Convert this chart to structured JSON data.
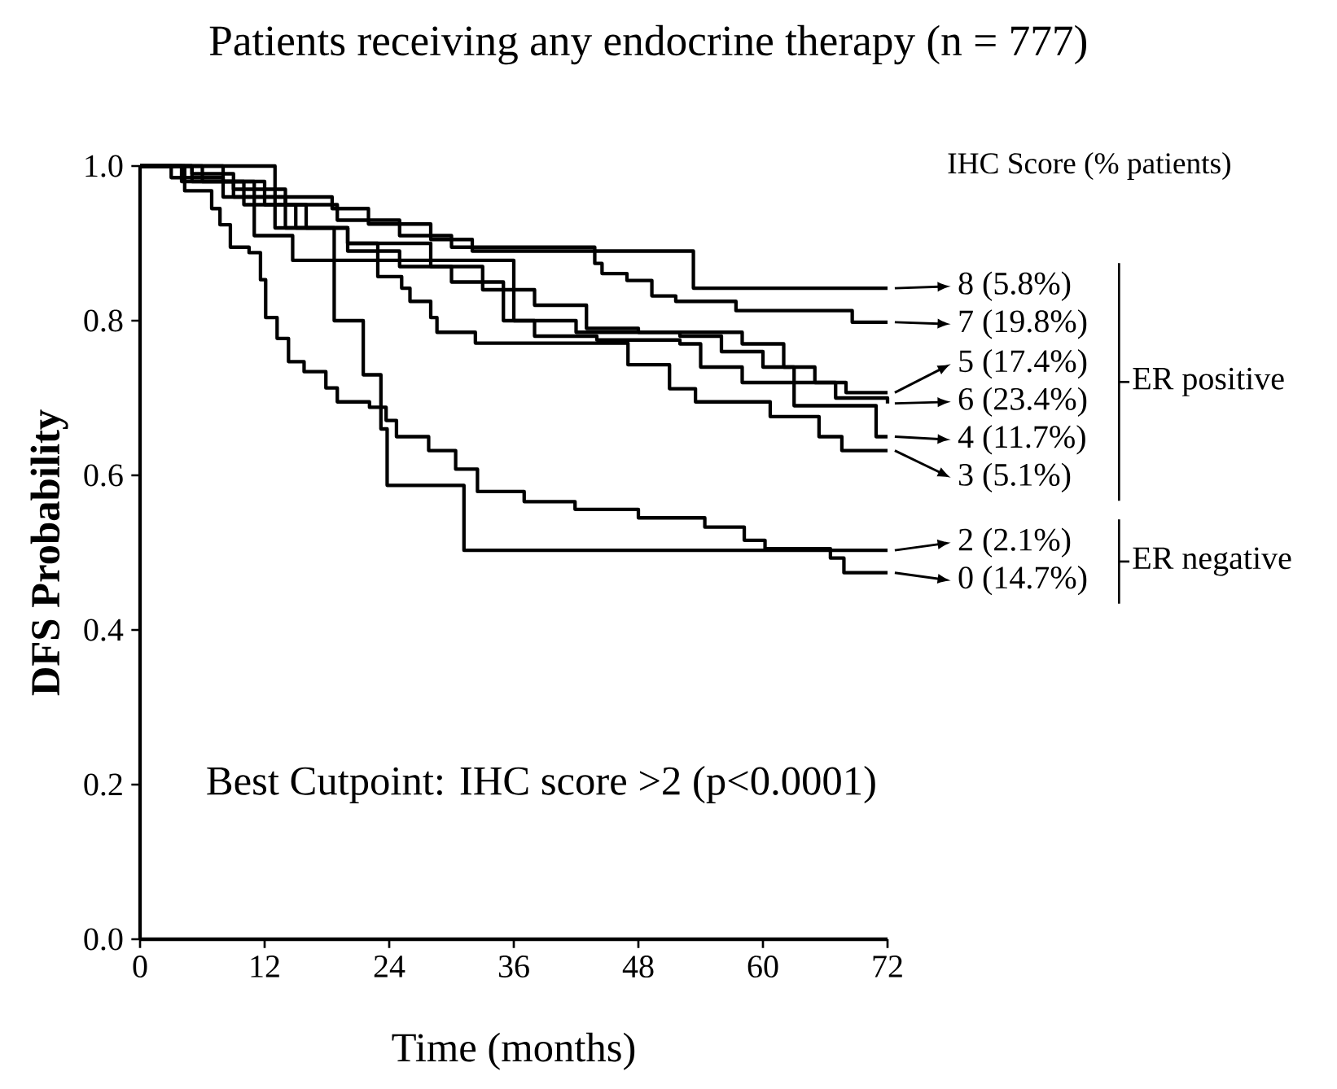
{
  "chart_data": {
    "type": "step",
    "title": "Patients receiving any endocrine therapy (n = 777)",
    "xlabel": "Time (months)",
    "ylabel": "DFS Probability",
    "legend_title": "IHC Score (% patients)",
    "legend": "right",
    "annotations": [
      "Best Cutpoint: IHC score >2 (p<0.0001)",
      "ER positive",
      "ER negative"
    ],
    "xlim": [
      0,
      72
    ],
    "ylim": [
      0,
      1
    ],
    "xticks": [
      0,
      12,
      24,
      36,
      48,
      60,
      72
    ],
    "yticks": [
      {
        "value": 0,
        "label": "0.0"
      },
      {
        "value": 0.2,
        "label": "0.2"
      },
      {
        "value": 0.4,
        "label": "0.4"
      },
      {
        "value": 0.6,
        "label": "0.6"
      },
      {
        "value": 0.8,
        "label": "0.8"
      },
      {
        "value": 1,
        "label": "1.0"
      }
    ],
    "series": [
      {
        "name": "8 (5.8%)",
        "color": "#000000",
        "x": [
          0,
          13,
          18.5,
          22,
          28,
          32,
          53.3,
          72
        ],
        "values": [
          1,
          0.96,
          0.945,
          0.925,
          0.905,
          0.89,
          0.842,
          0.842
        ]
      },
      {
        "name": "7 (19.8%)",
        "color": "#000000",
        "x": [
          0,
          5,
          9,
          14,
          19,
          25,
          30,
          43.8,
          44.5,
          46.9,
          49.3,
          51.6,
          57.4,
          68.6,
          72
        ],
        "values": [
          1,
          0.99,
          0.97,
          0.95,
          0.93,
          0.91,
          0.895,
          0.874,
          0.861,
          0.852,
          0.832,
          0.825,
          0.813,
          0.798,
          0.798
        ]
      },
      {
        "name": "5 (17.4%)",
        "color": "#000000",
        "x": [
          0,
          4,
          10,
          15,
          20,
          28,
          33,
          38,
          43,
          48,
          58,
          62,
          65,
          68,
          72
        ],
        "values": [
          1,
          0.98,
          0.95,
          0.92,
          0.9,
          0.87,
          0.84,
          0.82,
          0.79,
          0.785,
          0.77,
          0.74,
          0.72,
          0.707,
          0.707
        ]
      },
      {
        "name": "6 (23.4%)",
        "color": "#000000",
        "x": [
          0,
          3,
          8,
          14,
          20,
          25,
          30,
          35,
          42,
          52,
          56,
          60,
          63,
          67,
          72
        ],
        "values": [
          1,
          0.985,
          0.96,
          0.92,
          0.89,
          0.87,
          0.85,
          0.8,
          0.785,
          0.78,
          0.76,
          0.74,
          0.72,
          0.7,
          0.693
        ]
      },
      {
        "name": "4 (11.7%)",
        "color": "#000000",
        "x": [
          0,
          5,
          9,
          13,
          18.7,
          36,
          38,
          44,
          52,
          54,
          58,
          63,
          70.9,
          72
        ],
        "values": [
          1,
          0.98,
          0.96,
          0.92,
          0.878,
          0.8,
          0.78,
          0.775,
          0.77,
          0.74,
          0.72,
          0.69,
          0.65,
          0.65
        ]
      },
      {
        "name": "3 (5.1%)",
        "color": "#000000",
        "x": [
          0,
          6,
          12,
          16,
          20,
          22.9,
          25.2,
          26,
          28,
          28.6,
          32.3,
          47,
          51,
          53.5,
          60.7,
          65.4,
          67.6,
          72
        ],
        "values": [
          1,
          0.98,
          0.95,
          0.92,
          0.9,
          0.857,
          0.842,
          0.825,
          0.804,
          0.785,
          0.771,
          0.743,
          0.712,
          0.695,
          0.676,
          0.65,
          0.632,
          0.632
        ]
      },
      {
        "name": "2 (2.1%)",
        "color": "#000000",
        "x": [
          0,
          8,
          11,
          14.7,
          18.7,
          21.5,
          23.2,
          23.8,
          31.2,
          72
        ],
        "values": [
          1,
          0.98,
          0.91,
          0.878,
          0.8,
          0.73,
          0.66,
          0.587,
          0.503,
          0.503
        ]
      },
      {
        "name": "0 (14.7%)",
        "color": "#000000",
        "x": [
          0,
          4.3,
          6.9,
          7.7,
          8.7,
          10.5,
          11.6,
          12.1,
          13.2,
          14.3,
          15.8,
          17.9,
          19,
          22.1,
          23.7,
          24.7,
          27.8,
          30.4,
          32.5,
          37,
          41.9,
          48,
          54.4,
          58.2,
          60.2,
          66.5,
          67.8,
          72
        ],
        "values": [
          1,
          0.968,
          0.945,
          0.924,
          0.895,
          0.888,
          0.853,
          0.804,
          0.777,
          0.747,
          0.734,
          0.713,
          0.695,
          0.688,
          0.671,
          0.65,
          0.632,
          0.608,
          0.579,
          0.566,
          0.556,
          0.545,
          0.533,
          0.516,
          0.505,
          0.493,
          0.474,
          0.474
        ]
      }
    ]
  }
}
